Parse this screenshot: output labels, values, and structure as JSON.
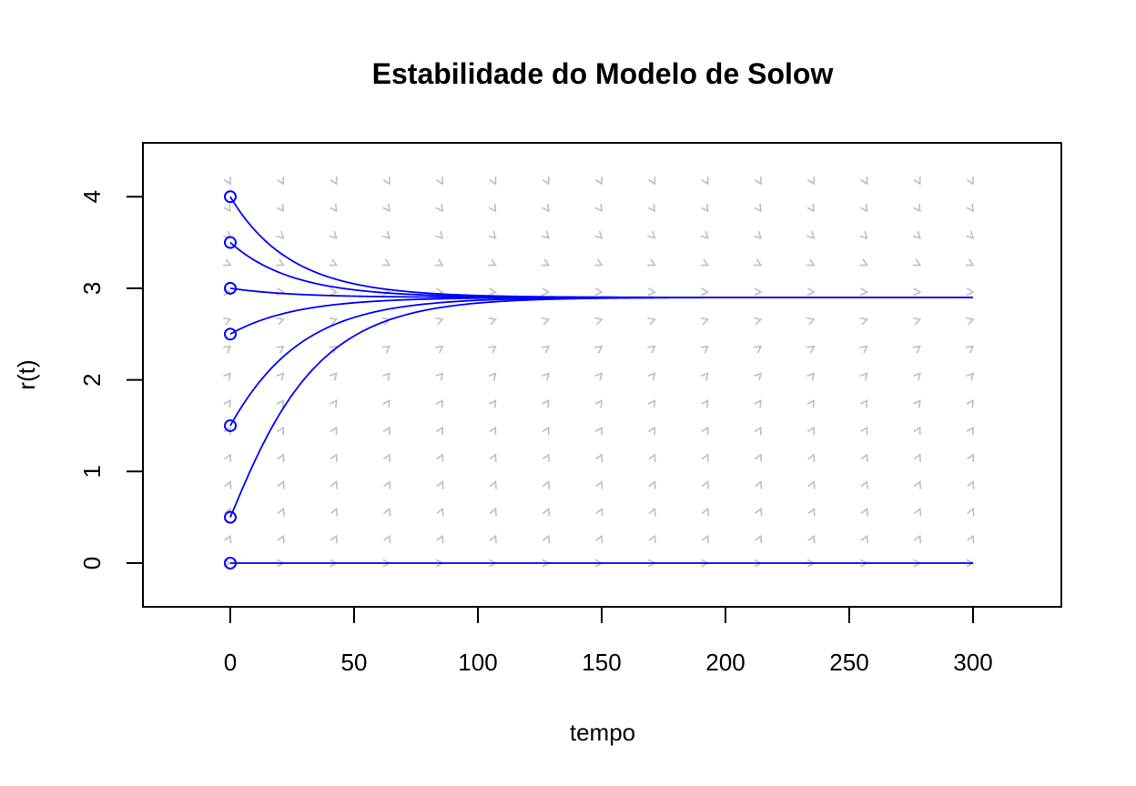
{
  "chart_data": {
    "type": "line",
    "title": "Estabilidade do Modelo de Solow",
    "xlabel": "tempo",
    "ylabel": "r(t)",
    "xlim": [
      -35,
      335
    ],
    "ylim": [
      -0.48,
      4.58
    ],
    "xticks": [
      0,
      50,
      100,
      150,
      200,
      250,
      300
    ],
    "yticks": [
      0,
      1,
      2,
      3,
      4
    ],
    "steady_state": 2.9,
    "grid": false,
    "legend": null,
    "x": [
      0,
      25,
      50,
      75,
      100,
      125,
      150,
      175,
      200,
      250,
      300
    ],
    "series": [
      {
        "name": "r0=4",
        "initial": 4.0,
        "values": [
          4.0,
          3.45,
          3.15,
          3.01,
          2.95,
          2.92,
          2.91,
          2.9,
          2.9,
          2.9,
          2.9
        ]
      },
      {
        "name": "r0=3.5",
        "initial": 3.5,
        "values": [
          3.5,
          3.2,
          3.04,
          2.96,
          2.93,
          2.91,
          2.9,
          2.9,
          2.9,
          2.9,
          2.9
        ]
      },
      {
        "name": "r0=3",
        "initial": 3.0,
        "values": [
          3.0,
          2.95,
          2.92,
          2.91,
          2.9,
          2.9,
          2.9,
          2.9,
          2.9,
          2.9,
          2.9
        ]
      },
      {
        "name": "r0=2.5",
        "initial": 2.5,
        "values": [
          2.5,
          2.7,
          2.8,
          2.85,
          2.88,
          2.89,
          2.9,
          2.9,
          2.9,
          2.9,
          2.9
        ]
      },
      {
        "name": "r0=1.5",
        "initial": 1.5,
        "values": [
          1.5,
          2.25,
          2.6,
          2.76,
          2.84,
          2.87,
          2.89,
          2.9,
          2.9,
          2.9,
          2.9
        ]
      },
      {
        "name": "r0=0.5",
        "initial": 0.5,
        "values": [
          0.5,
          1.6,
          2.3,
          2.63,
          2.78,
          2.85,
          2.88,
          2.89,
          2.9,
          2.9,
          2.9
        ]
      },
      {
        "name": "r0=0",
        "initial": 0.0,
        "values": [
          0,
          0,
          0,
          0,
          0,
          0,
          0,
          0,
          0,
          0,
          0
        ]
      }
    ],
    "slope_field": {
      "t_range": [
        0,
        300
      ],
      "r_range": [
        0,
        4.14
      ],
      "columns": 15,
      "rows": 15,
      "color": "#bebebe"
    },
    "colors": {
      "trajectory": "#0000ff",
      "slope_field": "#bebebe",
      "axes": "#000000"
    }
  }
}
